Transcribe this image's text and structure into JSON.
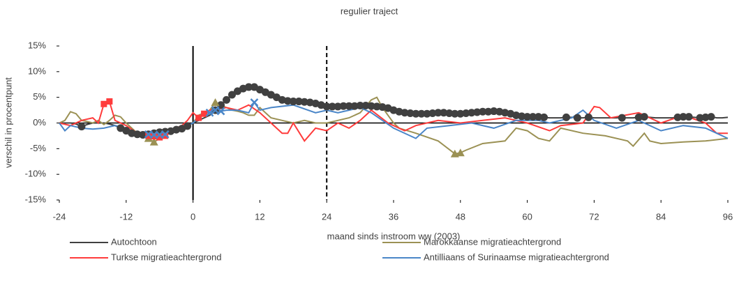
{
  "chart_data": {
    "type": "line",
    "title": "regulier traject",
    "x_label": "maand sinds instroom ww (2003)",
    "y_label": "verschil in procentpunt",
    "xlim": [
      -24,
      96
    ],
    "xticks": [
      -24,
      -12,
      0,
      12,
      24,
      36,
      48,
      60,
      72,
      84,
      96
    ],
    "ylim": [
      -15,
      15
    ],
    "yticks": [
      {
        "value": -15,
        "label": "-15%"
      },
      {
        "value": -10,
        "label": "-10%"
      },
      {
        "value": -5,
        "label": "-5%"
      },
      {
        "value": 0,
        "label": "0%"
      },
      {
        "value": 5,
        "label": "5%"
      },
      {
        "value": 10,
        "label": "10%"
      },
      {
        "value": 15,
        "label": "15%"
      }
    ],
    "reference_lines": [
      {
        "x": 0,
        "style": "solid"
      },
      {
        "x": 24,
        "style": "dashed"
      }
    ],
    "legend": "bottom",
    "series": [
      {
        "name": "Autochtoon",
        "color": "#404040",
        "marker": "circle",
        "x": [
          -24,
          -23,
          -22,
          -21,
          -20,
          -19,
          -18,
          -17,
          -16,
          -15,
          -14,
          -13,
          -12,
          -11,
          -10,
          -9,
          -8,
          -7,
          -6,
          -5,
          -4,
          -3,
          -2,
          -1,
          0,
          1,
          2,
          3,
          4,
          5,
          6,
          7,
          8,
          9,
          10,
          11,
          12,
          13,
          14,
          15,
          16,
          17,
          18,
          19,
          20,
          21,
          22,
          23,
          24,
          25,
          26,
          27,
          28,
          29,
          30,
          31,
          32,
          33,
          34,
          35,
          36,
          37,
          38,
          39,
          40,
          41,
          42,
          43,
          44,
          45,
          46,
          47,
          48,
          49,
          50,
          51,
          52,
          53,
          54,
          55,
          56,
          57,
          58,
          59,
          60,
          61,
          62,
          63,
          64,
          65,
          66,
          67,
          68,
          69,
          70,
          71,
          72,
          73,
          74,
          75,
          76,
          77,
          78,
          79,
          80,
          81,
          82,
          83,
          84,
          85,
          86,
          87,
          88,
          89,
          90,
          91,
          92,
          93,
          94,
          95,
          96
        ],
        "values": [
          0,
          0,
          0,
          -0.2,
          -0.7,
          -0.3,
          0,
          0,
          0,
          -0.2,
          -0.5,
          -1,
          -1.5,
          -2,
          -2.2,
          -2.3,
          -2.2,
          -2,
          -1.8,
          -1.7,
          -1.6,
          -1.3,
          -1.1,
          -0.6,
          0,
          0.5,
          1,
          1.5,
          2.5,
          3.5,
          4.5,
          5.5,
          6.2,
          6.7,
          7,
          7,
          6.5,
          6,
          5.5,
          5,
          4.5,
          4.3,
          4.2,
          4.2,
          4.1,
          4,
          3.8,
          3.5,
          3.2,
          3.2,
          3.2,
          3.3,
          3.3,
          3.3,
          3.4,
          3.4,
          3.3,
          3.2,
          3.1,
          2.9,
          2.5,
          2.2,
          2,
          1.9,
          1.8,
          1.8,
          1.8,
          1.9,
          2,
          2,
          1.9,
          1.8,
          1.8,
          1.9,
          2,
          2.1,
          2.2,
          2.2,
          2.3,
          2.2,
          2,
          1.8,
          1.5,
          1.3,
          1.2,
          1.2,
          1.2,
          1.1,
          1,
          1,
          1,
          1.1,
          1.1,
          1,
          1,
          1.1,
          1,
          1,
          1,
          1,
          1,
          1,
          1,
          1,
          1.1,
          1.2,
          1.1,
          1,
          1,
          1,
          1,
          1.1,
          1.2,
          1.2,
          1.1,
          1,
          1.1,
          1.2,
          1,
          1,
          1.1
        ],
        "marker_x": [
          -20,
          -13,
          -12,
          -11,
          -10,
          -9,
          -8,
          -7,
          -6,
          -5,
          -4,
          -3,
          -2,
          -1,
          4,
          5,
          6,
          7,
          8,
          9,
          10,
          11,
          12,
          13,
          14,
          15,
          16,
          17,
          18,
          19,
          20,
          21,
          22,
          23,
          24,
          25,
          26,
          27,
          28,
          29,
          30,
          31,
          32,
          33,
          34,
          35,
          36,
          37,
          38,
          39,
          40,
          41,
          42,
          43,
          44,
          45,
          46,
          47,
          48,
          49,
          50,
          51,
          52,
          53,
          54,
          55,
          56,
          57,
          58,
          59,
          60,
          61,
          62,
          63,
          67,
          69,
          71,
          77,
          80,
          81,
          87,
          88,
          89,
          91,
          92,
          93
        ]
      },
      {
        "name": "Marokkaanse migratieachtergrond",
        "color": "#9b9154",
        "marker": "triangle",
        "x": [
          -24,
          -23,
          -22,
          -21,
          -20,
          -19,
          -18,
          -17,
          -16,
          -15,
          -14,
          -13,
          -12,
          -11,
          -10,
          -9,
          -8,
          -7,
          -6,
          -5,
          -4,
          -3,
          -2,
          -1,
          0,
          1,
          2,
          3,
          4,
          5,
          6,
          7,
          8,
          9,
          10,
          11,
          12,
          13,
          14,
          16,
          18,
          20,
          22,
          24,
          26,
          28,
          30,
          32,
          33,
          34,
          36,
          37,
          40,
          44,
          47,
          48,
          49,
          52,
          56,
          58,
          60,
          62,
          64,
          66,
          70,
          74,
          78,
          79,
          81,
          82,
          84,
          88,
          92,
          96
        ],
        "values": [
          0,
          0.5,
          2.2,
          1.8,
          0.5,
          0.3,
          0,
          0.5,
          -0.3,
          0.5,
          1.5,
          1.2,
          0,
          -1,
          -2,
          -2.5,
          -3,
          -3.7,
          -3,
          -2.5,
          -1.8,
          -1,
          -1,
          -0.5,
          0,
          1.5,
          2,
          2.5,
          4,
          3.5,
          3,
          2.5,
          2.3,
          2,
          1.5,
          1.5,
          3,
          2,
          1,
          0.5,
          0,
          0.5,
          0,
          0,
          0.5,
          1,
          2,
          4.5,
          5,
          3,
          0,
          -1,
          -2,
          -3.5,
          -6,
          -5.8,
          -5.3,
          -4,
          -3.5,
          -1,
          -1.5,
          -3,
          -3.5,
          -1,
          -2,
          -2.5,
          -3.5,
          -4.5,
          -2,
          -3.5,
          -4,
          -3.7,
          -3.5,
          -3
        ],
        "marker_x": [
          -8,
          -7,
          4,
          47,
          48
        ]
      },
      {
        "name": "Turkse migratieachtergrond",
        "color": "#ff3b3b",
        "marker": "square",
        "x": [
          -24,
          -22,
          -20,
          -18,
          -17,
          -16,
          -15,
          -14,
          -12,
          -10,
          -8,
          -7,
          -6,
          -5,
          -4,
          -2,
          -1,
          0,
          1,
          2,
          3,
          6,
          8,
          10,
          12,
          14,
          16,
          17,
          18,
          20,
          22,
          24,
          26,
          28,
          30,
          32,
          35,
          38,
          40,
          44,
          48,
          52,
          56,
          60,
          64,
          66,
          70,
          72,
          73,
          75,
          80,
          84,
          88,
          92,
          94,
          96
        ],
        "values": [
          0,
          -0.5,
          0.5,
          1,
          0,
          3.7,
          4.2,
          0.5,
          -0.5,
          -2,
          -2.5,
          -2.6,
          -2.8,
          -2.5,
          -1.5,
          -0.5,
          0.5,
          2,
          1,
          1.8,
          2.5,
          3,
          2.5,
          3.5,
          2,
          0,
          -2,
          -2,
          0,
          -3.5,
          -1,
          -1.5,
          0,
          -1,
          0.5,
          2.5,
          0,
          -1.5,
          -0.5,
          0.5,
          0,
          0.5,
          1,
          0,
          -1.5,
          -0.5,
          0,
          3.2,
          3,
          1,
          2,
          0,
          1.5,
          0,
          -2,
          -2
        ],
        "marker_x": [
          -16,
          -15,
          -8,
          -7,
          -6,
          -5,
          1,
          2
        ]
      },
      {
        "name": "Antilliaans of Surinaamse migratieachtergrond",
        "color": "#4a86c8",
        "marker": "cross",
        "x": [
          -24,
          -23,
          -22,
          -20,
          -18,
          -16,
          -14,
          -12,
          -10,
          -8,
          -7,
          -6,
          -5,
          -4,
          -2,
          0,
          2,
          3,
          4,
          5,
          6,
          8,
          10,
          11,
          12,
          14,
          18,
          22,
          24,
          26,
          30,
          32,
          36,
          40,
          42,
          46,
          50,
          54,
          58,
          62,
          64,
          68,
          70,
          72,
          76,
          80,
          84,
          88,
          92,
          94,
          96
        ],
        "values": [
          0,
          -1.5,
          -0.5,
          -1,
          -1.2,
          -1,
          -0.5,
          -1,
          -2,
          -2.2,
          -2.3,
          -2.3,
          -2.2,
          -1.5,
          -1,
          0,
          2,
          2,
          2.5,
          2.3,
          2.5,
          2.5,
          2,
          4,
          2.5,
          3,
          3.5,
          2,
          2.5,
          2,
          3,
          2,
          -1,
          -3,
          -1,
          -0.5,
          0,
          -1,
          0.5,
          0.5,
          0,
          1,
          2.5,
          0.5,
          -1,
          0.5,
          -1.5,
          -0.5,
          -1,
          -2,
          -3
        ],
        "marker_x": [
          -8,
          -7,
          -6,
          -5,
          3,
          4,
          5,
          11
        ]
      }
    ]
  }
}
